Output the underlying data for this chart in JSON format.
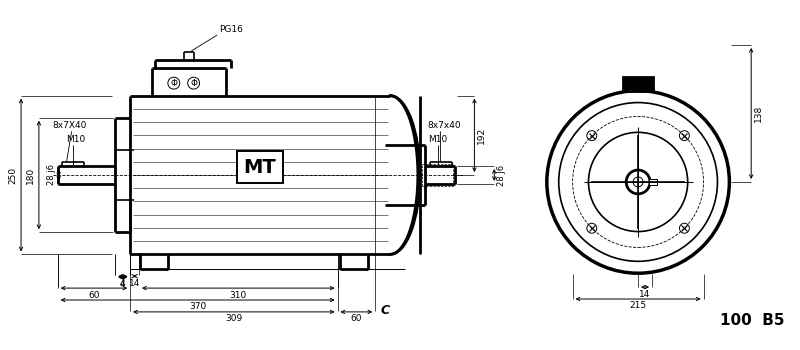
{
  "title": "100  B5",
  "bg_color": "#ffffff",
  "annotations": {
    "key_slot_left": "8x7X40",
    "pg16": "PG16",
    "key_slot_right": "8x7x40",
    "m10_left": "M10",
    "m10_right": "M10",
    "label_28j6_left": "28 j6",
    "label_28j6_right": "28 J6",
    "label_250": "250",
    "label_180": "180",
    "label_192": "192",
    "label_4": "4",
    "label_14_left": "14",
    "label_60_left": "60",
    "label_310": "310",
    "label_370": "370",
    "label_309": "309",
    "label_60_right": "60",
    "label_C": "C",
    "label_138": "138",
    "label_14_right": "14",
    "label_215": "215",
    "mt_label": "MT"
  }
}
